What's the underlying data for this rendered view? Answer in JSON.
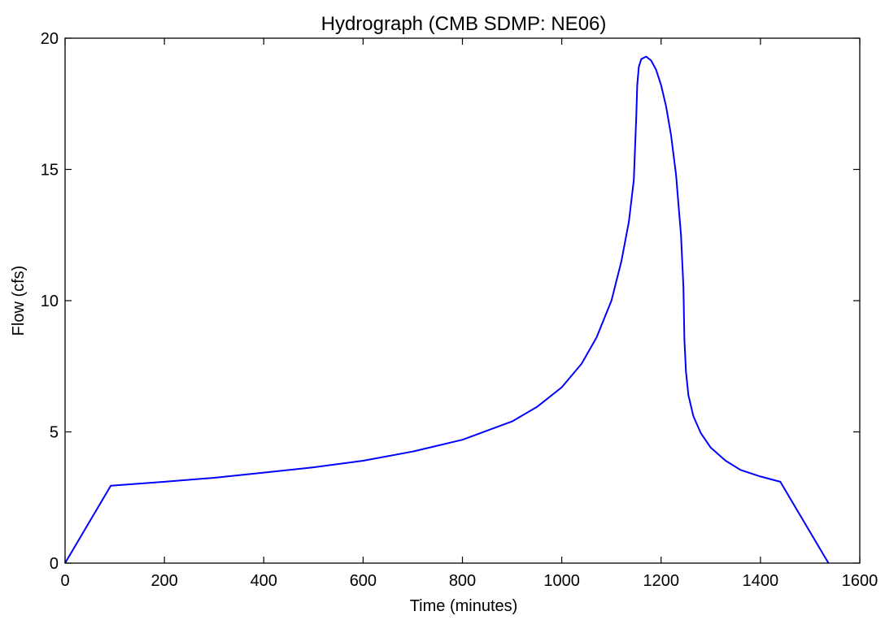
{
  "chart_data": {
    "type": "line",
    "title": "Hydrograph (CMB SDMP: NE06)",
    "xlabel": "Time (minutes)",
    "ylabel": "Flow (cfs)",
    "xlim": [
      0,
      1600
    ],
    "ylim": [
      0,
      20
    ],
    "xticks": [
      0,
      200,
      400,
      600,
      800,
      1000,
      1200,
      1400,
      1600
    ],
    "yticks": [
      0,
      5,
      10,
      15,
      20
    ],
    "grid": false,
    "line_color": "#0000ff",
    "series": [
      {
        "x": [
          0,
          92,
          200,
          300,
          400,
          500,
          600,
          700,
          800,
          900,
          950,
          1000,
          1040,
          1070,
          1100,
          1120,
          1135,
          1145,
          1150,
          1152,
          1155,
          1160,
          1170,
          1180,
          1190,
          1200,
          1210,
          1220,
          1230,
          1240,
          1245,
          1247,
          1250,
          1255,
          1265,
          1280,
          1300,
          1330,
          1360,
          1400,
          1440,
          1537
        ],
        "y": [
          0,
          2.95,
          3.1,
          3.25,
          3.45,
          3.65,
          3.9,
          4.25,
          4.7,
          5.4,
          5.95,
          6.7,
          7.6,
          8.6,
          10.0,
          11.5,
          13.0,
          14.6,
          17.0,
          18.2,
          18.9,
          19.2,
          19.3,
          19.15,
          18.8,
          18.2,
          17.4,
          16.3,
          14.8,
          12.5,
          10.5,
          8.5,
          7.3,
          6.4,
          5.6,
          4.95,
          4.4,
          3.9,
          3.55,
          3.3,
          3.1,
          0
        ]
      }
    ]
  }
}
